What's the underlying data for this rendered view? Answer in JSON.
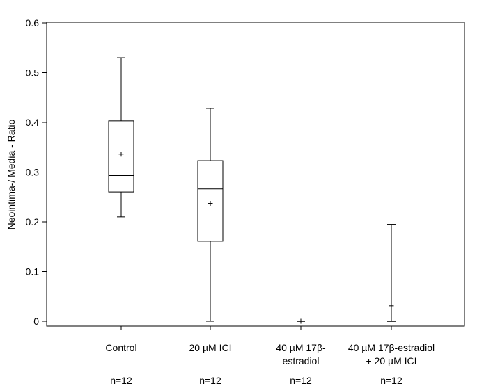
{
  "chart_data": {
    "type": "box",
    "ylabel": "Neointima-/ Media - Ratio",
    "ylim": [
      0,
      0.6
    ],
    "yticks": [
      "0",
      "0.1",
      "0.2",
      "0.3",
      "0.4",
      "0.5",
      "0.6"
    ],
    "grid": false,
    "categories": [
      {
        "label_lines": [
          "Control"
        ],
        "n_label": "n=12",
        "min": 0.21,
        "q1": 0.26,
        "median": 0.293,
        "q3": 0.403,
        "max": 0.53,
        "mean": 0.336
      },
      {
        "label_lines": [
          "20 µM ICI"
        ],
        "n_label": "n=12",
        "min": 0.0,
        "q1": 0.161,
        "median": 0.266,
        "q3": 0.323,
        "max": 0.428,
        "mean": 0.237
      },
      {
        "label_lines": [
          "40 µM 17β-",
          "estradiol"
        ],
        "n_label": "n=12",
        "min": 0.0,
        "q1": 0.0,
        "median": 0.0,
        "q3": 0.0,
        "max": 0.0,
        "mean": 0.0
      },
      {
        "label_lines": [
          "40 µM 17β-estradiol",
          "+ 20 µM ICI"
        ],
        "n_label": "n=12",
        "min": 0.0,
        "q1": 0.0,
        "median": 0.0,
        "q3": 0.0,
        "max": 0.195,
        "mean": 0.031
      }
    ]
  }
}
